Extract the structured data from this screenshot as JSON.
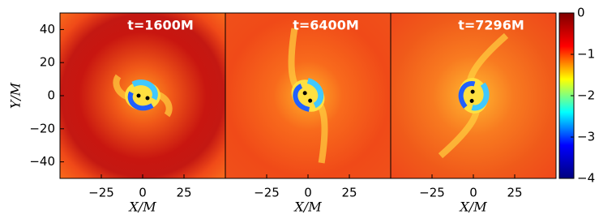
{
  "chart_data": [
    {
      "type": "heatmap",
      "title": "t=1600M",
      "xlabel": "X/M",
      "ylabel": "Y/M",
      "xlim": [
        -50,
        50
      ],
      "ylim": [
        -50,
        50
      ],
      "xticks": [
        {
          "value": -25,
          "label": "−25"
        },
        0,
        25
      ],
      "yticks": [
        {
          "value": -40,
          "label": "−40"
        },
        {
          "value": -20,
          "label": "−20"
        },
        0,
        20,
        40
      ]
    },
    {
      "type": "heatmap",
      "title": "t=6400M",
      "xlabel": "X/M",
      "xlim": [
        -50,
        50
      ],
      "ylim": [
        -50,
        50
      ],
      "xticks": [
        {
          "value": -25,
          "label": "−25"
        },
        0,
        25
      ]
    },
    {
      "type": "heatmap",
      "title": "t=7296M",
      "xlabel": "X/M",
      "xlim": [
        -50,
        50
      ],
      "ylim": [
        -50,
        50
      ],
      "xticks": [
        {
          "value": -25,
          "label": "−25"
        },
        0,
        25
      ],
      "colorbar": {
        "lim": [
          -4,
          0
        ],
        "ticks": [
          {
            "value": -4,
            "label": "−4"
          },
          {
            "value": -3,
            "label": "−3"
          },
          {
            "value": -2,
            "label": "−2"
          },
          {
            "value": -1,
            "label": "−1"
          },
          0
        ],
        "colors": [
          "#00007f",
          "#0000ff",
          "#00ffff",
          "#ffff00",
          "#ff0000",
          "#7f0000"
        ]
      }
    }
  ]
}
